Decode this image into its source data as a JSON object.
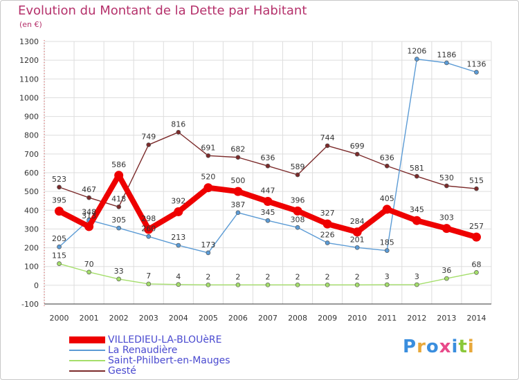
{
  "title": "Evolution du Montant de la Dette par Habitant",
  "subtitle": "(en €)",
  "brand": {
    "text": "Proxiti",
    "colors": [
      "#3a8ede",
      "#e8a83a",
      "#3a8ede",
      "#e84a8a",
      "#3a8ede",
      "#8ac83a",
      "#e8a83a"
    ]
  },
  "chart_data": {
    "type": "line",
    "x": [
      "2000",
      "2001",
      "2002",
      "2003",
      "2004",
      "2005",
      "2006",
      "2007",
      "2008",
      "2009",
      "2010",
      "2011",
      "2012",
      "2013",
      "2014"
    ],
    "ylim": [
      -100,
      1300
    ],
    "yticks": [
      -100,
      0,
      100,
      200,
      300,
      400,
      500,
      600,
      700,
      800,
      900,
      1000,
      1100,
      1200,
      1300
    ],
    "grid": true,
    "legend_position": "bottom-left",
    "series": [
      {
        "name": "VILLEDIEU-LA-BLOUèRE",
        "color": "#ee0000",
        "values": [
          395,
          313,
          586,
          298,
          392,
          520,
          500,
          447,
          396,
          327,
          284,
          405,
          345,
          303,
          257
        ],
        "labels": [
          "395",
          "313",
          "586",
          "298",
          "392",
          "520",
          "500",
          "447",
          "396",
          "327",
          "284",
          "405",
          "345",
          "303",
          "257"
        ]
      },
      {
        "name": "La Renaudière",
        "color": "#5b9bd5",
        "values": [
          205,
          348,
          305,
          260,
          213,
          173,
          387,
          345,
          308,
          226,
          201,
          185,
          1206,
          1186,
          1136
        ],
        "labels": [
          "205",
          "348",
          "305",
          "260",
          "213",
          "173",
          "387",
          "345",
          "308",
          "226",
          "201",
          "185",
          "1206",
          "1186",
          "1136"
        ]
      },
      {
        "name": "Saint-Philbert-en-Mauges",
        "color": "#a4de6a",
        "values": [
          115,
          70,
          33,
          7,
          4,
          2,
          2,
          2,
          2,
          2,
          2,
          3,
          3,
          36,
          68
        ],
        "labels": [
          "115",
          "70",
          "33",
          "7",
          "4",
          "2",
          "2",
          "2",
          "2",
          "2",
          "2",
          "3",
          "3",
          "36",
          "68"
        ]
      },
      {
        "name": "Gesté",
        "color": "#7b2a2a",
        "values": [
          523,
          467,
          418,
          749,
          816,
          691,
          682,
          636,
          589,
          744,
          699,
          636,
          581,
          530,
          515
        ],
        "labels": [
          "523",
          "467",
          "418",
          "749",
          "816",
          "691",
          "682",
          "636",
          "589",
          "744",
          "699",
          "636",
          "581",
          "530",
          "515"
        ]
      }
    ]
  }
}
